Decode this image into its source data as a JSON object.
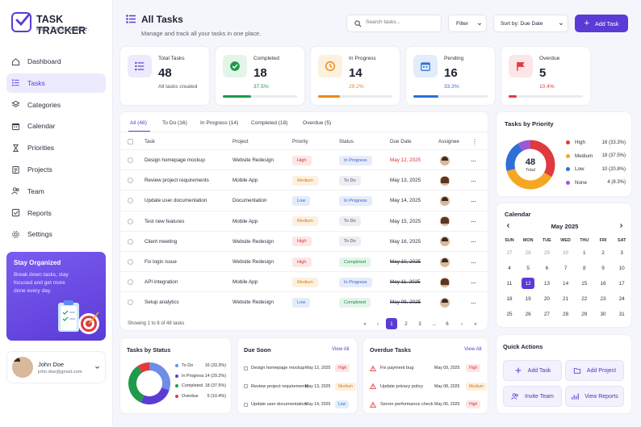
{
  "brand": {
    "title": "TASK TRACKER",
    "tagline": "Plan. Track. Achieve."
  },
  "sidebar": {
    "items": [
      {
        "label": "Dashboard",
        "icon": "home-icon",
        "active": false
      },
      {
        "label": "Tasks",
        "icon": "list-icon",
        "active": true
      },
      {
        "label": "Categories",
        "icon": "layers-icon",
        "active": false
      },
      {
        "label": "Calendar",
        "icon": "calendar-icon",
        "active": false
      },
      {
        "label": "Priorities",
        "icon": "hourglass-icon",
        "active": false
      },
      {
        "label": "Projects",
        "icon": "document-icon",
        "active": false
      },
      {
        "label": "Team",
        "icon": "users-icon",
        "active": false
      },
      {
        "label": "Reports",
        "icon": "checkbox-icon",
        "active": false
      },
      {
        "label": "Settings",
        "icon": "gear-icon",
        "active": false
      }
    ],
    "promo": {
      "title": "Stay Organized",
      "text": "Break down tasks, stay focused and get more done every day."
    },
    "user": {
      "name": "John Doe",
      "email": "john.doe@gmail.com"
    }
  },
  "header": {
    "title": "All Tasks",
    "subtitle": "Manage and track all your tasks in one place.",
    "search_placeholder": "Search tasks...",
    "filter_label": "Filter",
    "sort_label": "Sort by: Due Date",
    "add_label": "Add Task"
  },
  "stats": [
    {
      "label": "Total Tasks",
      "value": "48",
      "note": "All tasks created",
      "color": "#5b3bd6",
      "icon": "list-icon"
    },
    {
      "label": "Completed",
      "value": "18",
      "note": "37.5%",
      "color": "#1e9a4a",
      "icon": "check-circle-icon",
      "progress": 0.375
    },
    {
      "label": "In Progress",
      "value": "14",
      "note": "29.2%",
      "color": "#e8891a",
      "icon": "clock-icon",
      "progress": 0.292
    },
    {
      "label": "Pending",
      "value": "16",
      "note": "33.3%",
      "color": "#2d6fd6",
      "icon": "calendar-icon",
      "progress": 0.333
    },
    {
      "label": "Overdue",
      "value": "5",
      "note": "10.4%",
      "color": "#e0393e",
      "icon": "flag-icon",
      "progress": 0.104
    }
  ],
  "tabs": [
    {
      "label": "All (48)",
      "active": true
    },
    {
      "label": "To Do (16)",
      "active": false
    },
    {
      "label": "In Progress (14)",
      "active": false
    },
    {
      "label": "Completed (18)",
      "active": false
    },
    {
      "label": "Overdue (5)",
      "active": false
    }
  ],
  "table": {
    "columns": [
      "Task",
      "Project",
      "Priority",
      "Status",
      "Due Date",
      "Assignee"
    ],
    "rows": [
      {
        "task": "Design homepage mockup",
        "project": "Website Redesign",
        "priority": "High",
        "status": "In Progress",
        "due": "May 12, 2025",
        "due_style": "red",
        "avatar": "m"
      },
      {
        "task": "Review project requirements",
        "project": "Mobile App",
        "priority": "Medium",
        "status": "To Do",
        "due": "May 13, 2025",
        "due_style": "normal",
        "avatar": "f"
      },
      {
        "task": "Update user documentation",
        "project": "Documentation",
        "priority": "Low",
        "status": "In Progress",
        "due": "May 14, 2025",
        "due_style": "normal",
        "avatar": "m"
      },
      {
        "task": "Test new features",
        "project": "Mobile App",
        "priority": "Medium",
        "status": "To Do",
        "due": "May 15, 2025",
        "due_style": "normal",
        "avatar": "f"
      },
      {
        "task": "Client meeting",
        "project": "Website Redesign",
        "priority": "High",
        "status": "To Do",
        "due": "May 16, 2025",
        "due_style": "normal",
        "avatar": "m"
      },
      {
        "task": "Fix login issue",
        "project": "Website Redesign",
        "priority": "High",
        "status": "Completed",
        "due": "May 10, 2025",
        "due_style": "strike",
        "avatar": "m"
      },
      {
        "task": "API integration",
        "project": "Mobile App",
        "priority": "Medium",
        "status": "In Progress",
        "due": "May 11, 2025",
        "due_style": "strike",
        "avatar": "f"
      },
      {
        "task": "Setup analytics",
        "project": "Website Redesign",
        "priority": "Low",
        "status": "Completed",
        "due": "May 09, 2025",
        "due_style": "strike",
        "avatar": "m"
      }
    ],
    "footer": "Showing 1 to 8 of 48 tasks",
    "pages": [
      "«",
      "‹",
      "1",
      "2",
      "3",
      "...",
      "6",
      "›",
      "»"
    ]
  },
  "priority_chart": {
    "title": "Tasks by Priority",
    "center_value": "48",
    "center_label": "Total",
    "items": [
      {
        "label": "High",
        "value": 16,
        "pct": "16 (33.3%)",
        "color": "#e0393e"
      },
      {
        "label": "Medium",
        "value": 18,
        "pct": "18 (37.5%)",
        "color": "#f5a623"
      },
      {
        "label": "Low",
        "value": 10,
        "pct": "10 (20.8%)",
        "color": "#2d6fd6"
      },
      {
        "label": "None",
        "value": 4,
        "pct": "4 (8.3%)",
        "color": "#9b59d6"
      }
    ]
  },
  "calendar": {
    "title": "Calendar",
    "month": "May 2025",
    "weekdays": [
      "SUN",
      "MON",
      "TUE",
      "WED",
      "THU",
      "FRI",
      "SAT"
    ],
    "days": [
      "27",
      "28",
      "29",
      "30",
      "1",
      "2",
      "3",
      "4",
      "5",
      "6",
      "7",
      "8",
      "9",
      "10",
      "11",
      "12",
      "13",
      "14",
      "15",
      "16",
      "17",
      "18",
      "19",
      "20",
      "21",
      "22",
      "23",
      "24",
      "25",
      "26",
      "27",
      "28",
      "29",
      "30",
      "31"
    ],
    "selected_index": 15,
    "dot_colors": {
      "9": "#e0393e",
      "10": "#5b3bd6",
      "11": "#f5a623",
      "12": "#2d6fd6",
      "14": "#5b3bd6",
      "16": "#e0393e",
      "17": "#f5a623",
      "18": "#2d6fd6",
      "20": "#e0393e",
      "21": "#1e9a4a"
    }
  },
  "status_chart": {
    "title": "Tasks by Status",
    "items": [
      {
        "label": "To Do",
        "value": 16,
        "pct": "16 (33.3%)",
        "color": "#6c8ee6"
      },
      {
        "label": "In Progress",
        "value": 14,
        "pct": "14 (29.2%)",
        "color": "#5b3bd6"
      },
      {
        "label": "Completed",
        "value": 18,
        "pct": "18 (37.5%)",
        "color": "#1e9a4a"
      },
      {
        "label": "Overdue",
        "value": 5,
        "pct": "5 (10.4%)",
        "color": "#e0393e"
      }
    ]
  },
  "due_soon": {
    "title": "Due Soon",
    "view_all": "View All",
    "items": [
      {
        "task": "Design homepage mockup",
        "date": "May 12, 2025",
        "priority": "High"
      },
      {
        "task": "Review project requirements",
        "date": "May 13, 2025",
        "priority": "Medium"
      },
      {
        "task": "Update user documentation",
        "date": "May 14, 2025",
        "priority": "Low"
      }
    ]
  },
  "overdue": {
    "title": "Overdue Tasks",
    "view_all": "View All",
    "items": [
      {
        "task": "Fix payment bug",
        "date": "May 09, 2025",
        "priority": "High"
      },
      {
        "task": "Update privacy policy",
        "date": "May 08, 2025",
        "priority": "Medium"
      },
      {
        "task": "Server performance check",
        "date": "May 05, 2025",
        "priority": "High"
      }
    ]
  },
  "quick_actions": {
    "title": "Quick Actions",
    "items": [
      {
        "label": "Add Task",
        "icon": "plus-icon"
      },
      {
        "label": "Add Project",
        "icon": "folder-icon"
      },
      {
        "label": "Invite Team",
        "icon": "users-icon"
      },
      {
        "label": "View Reports",
        "icon": "chart-icon"
      }
    ]
  }
}
